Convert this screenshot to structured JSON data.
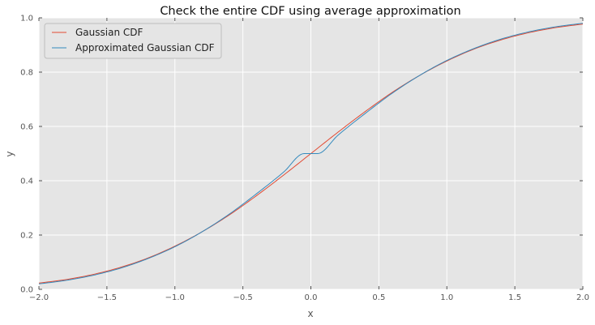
{
  "chart_data": {
    "type": "line",
    "title": "Check the entire CDF using average approximation",
    "xlabel": "x",
    "ylabel": "y",
    "xlim": [
      -2.0,
      2.0
    ],
    "ylim": [
      0.0,
      1.0
    ],
    "xticks": [
      -2.0,
      -1.5,
      -1.0,
      -0.5,
      0.0,
      0.5,
      1.0,
      1.5,
      2.0
    ],
    "xtick_labels": [
      "−2.0",
      "−1.5",
      "−1.0",
      "−0.5",
      "0.0",
      "0.5",
      "1.0",
      "1.5",
      "2.0"
    ],
    "yticks": [
      0.0,
      0.2,
      0.4,
      0.6,
      0.8,
      1.0
    ],
    "ytick_labels": [
      "0.0",
      "0.2",
      "0.4",
      "0.6",
      "0.8",
      "1.0"
    ],
    "grid": true,
    "legend_position": "top-left",
    "background_color": "#e5e5e5",
    "series": [
      {
        "name": "Gaussian CDF",
        "color": "#e24a33",
        "x": [
          -2.0,
          -1.8,
          -1.6,
          -1.4,
          -1.2,
          -1.0,
          -0.8,
          -0.6,
          -0.4,
          -0.2,
          0.0,
          0.2,
          0.4,
          0.6,
          0.8,
          1.0,
          1.2,
          1.4,
          1.6,
          1.8,
          2.0
        ],
        "y": [
          0.023,
          0.036,
          0.055,
          0.081,
          0.115,
          0.159,
          0.212,
          0.274,
          0.345,
          0.421,
          0.5,
          0.579,
          0.655,
          0.726,
          0.788,
          0.841,
          0.885,
          0.919,
          0.945,
          0.964,
          0.977
        ]
      },
      {
        "name": "Approximated Gaussian CDF",
        "color": "#348abd",
        "x": [
          -2.0,
          -1.8,
          -1.6,
          -1.4,
          -1.2,
          -1.0,
          -0.8,
          -0.6,
          -0.4,
          -0.2,
          -0.05,
          0.05,
          0.2,
          0.4,
          0.6,
          0.8,
          1.0,
          1.2,
          1.4,
          1.6,
          1.8,
          2.0
        ],
        "y": [
          0.02,
          0.033,
          0.052,
          0.078,
          0.113,
          0.157,
          0.212,
          0.277,
          0.352,
          0.432,
          0.5,
          0.5,
          0.568,
          0.648,
          0.723,
          0.788,
          0.843,
          0.887,
          0.922,
          0.948,
          0.967,
          0.98
        ]
      }
    ]
  }
}
